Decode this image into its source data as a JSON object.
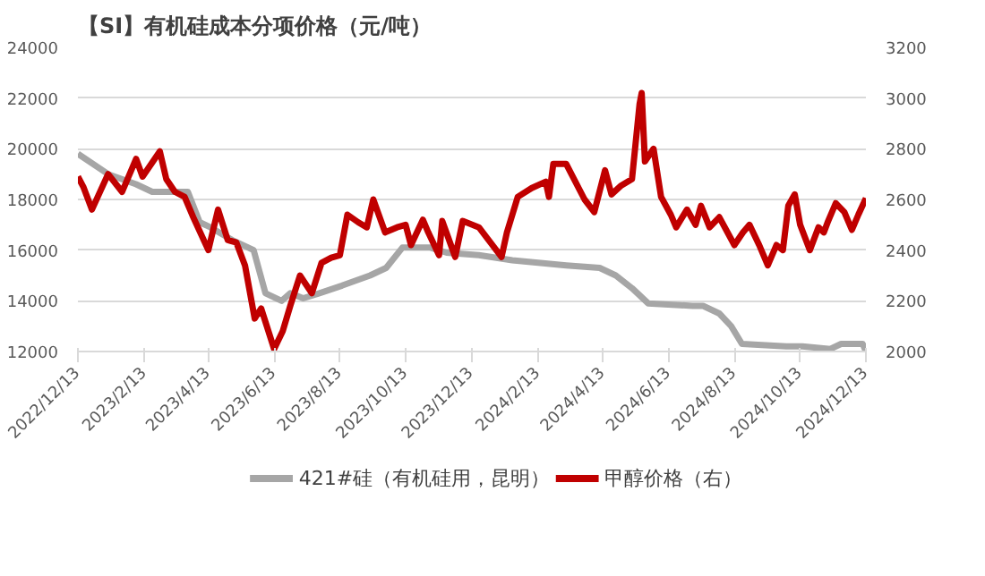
{
  "chart_data": {
    "type": "line",
    "title": "【SI】有机硅成本分项价格（元/吨）",
    "ylim": [
      12000,
      24000
    ],
    "yticks": [
      12000,
      14000,
      16000,
      18000,
      20000,
      22000,
      24000
    ],
    "y2lim": [
      2000,
      3200
    ],
    "y2ticks": [
      2000,
      2200,
      2400,
      2600,
      2800,
      3000,
      3200
    ],
    "xlim": [
      "2022-12-13",
      "2024-12-13"
    ],
    "xticks": [
      {
        "value": "2022-12-13",
        "label": "2022/12/13"
      },
      {
        "value": "2023-02-13",
        "label": "2023/2/13"
      },
      {
        "value": "2023-04-13",
        "label": "2023/4/13"
      },
      {
        "value": "2023-06-13",
        "label": "2023/6/13"
      },
      {
        "value": "2023-08-13",
        "label": "2023/8/13"
      },
      {
        "value": "2023-10-13",
        "label": "2023/10/13"
      },
      {
        "value": "2023-12-13",
        "label": "2023/12/13"
      },
      {
        "value": "2024-02-13",
        "label": "2024/2/13"
      },
      {
        "value": "2024-04-13",
        "label": "2024/4/13"
      },
      {
        "value": "2024-06-13",
        "label": "2024/6/13"
      },
      {
        "value": "2024-08-13",
        "label": "2024/8/13"
      },
      {
        "value": "2024-10-13",
        "label": "2024/10/13"
      },
      {
        "value": "2024-12-13",
        "label": "2024/12/13"
      }
    ],
    "grid": "y",
    "legend": "bottom",
    "line_style": "solid",
    "marker": "none",
    "series": [
      {
        "name": "421#硅（有机硅用，昆明）",
        "color": "#a6a6a6",
        "x": [
          "2022-12-13",
          "2023-01-10",
          "2023-02-05",
          "2023-02-20",
          "2023-03-25",
          "2023-04-05",
          "2023-04-15",
          "2023-05-05",
          "2023-05-25",
          "2023-06-05",
          "2023-06-20",
          "2023-06-28",
          "2023-07-10",
          "2023-07-25",
          "2023-08-15",
          "2023-09-10",
          "2023-09-25",
          "2023-10-10",
          "2023-11-05",
          "2023-11-20",
          "2023-12-20",
          "2024-01-20",
          "2024-03-10",
          "2024-04-10",
          "2024-04-25",
          "2024-05-10",
          "2024-05-25",
          "2024-07-05",
          "2024-07-15",
          "2024-07-30",
          "2024-08-10",
          "2024-08-20",
          "2024-09-30",
          "2024-10-15",
          "2024-11-10",
          "2024-11-20",
          "2024-12-10",
          "2024-12-13"
        ],
        "values": [
          19800,
          19000,
          18600,
          18300,
          18300,
          17100,
          16900,
          16400,
          16000,
          14300,
          14000,
          14300,
          14100,
          14300,
          14600,
          15000,
          15300,
          16100,
          16100,
          15900,
          15800,
          15600,
          15400,
          15300,
          15000,
          14500,
          13900,
          13800,
          13800,
          13500,
          13000,
          12300,
          12200,
          12200,
          12100,
          12300,
          12300,
          12000
        ]
      },
      {
        "name": "甲醇价格（右）",
        "color": "#c00000",
        "axis": "y2",
        "x": [
          "2022-12-13",
          "2022-12-18",
          "2022-12-26",
          "2023-01-10",
          "2023-01-23",
          "2023-02-05",
          "2023-02-11",
          "2023-02-27",
          "2023-03-05",
          "2023-03-13",
          "2023-03-22",
          "2023-03-30",
          "2023-04-13",
          "2023-04-22",
          "2023-05-01",
          "2023-05-09",
          "2023-05-17",
          "2023-05-26",
          "2023-06-01",
          "2023-06-13",
          "2023-06-21",
          "2023-06-28",
          "2023-07-07",
          "2023-07-18",
          "2023-07-27",
          "2023-08-05",
          "2023-08-13",
          "2023-08-20",
          "2023-08-30",
          "2023-09-07",
          "2023-09-13",
          "2023-09-24",
          "2023-10-05",
          "2023-10-13",
          "2023-10-18",
          "2023-10-29",
          "2023-11-03",
          "2023-11-13",
          "2023-11-16",
          "2023-11-28",
          "2023-12-05",
          "2023-12-20",
          "2024-01-10",
          "2024-01-15",
          "2024-01-25",
          "2024-02-07",
          "2024-02-20",
          "2024-02-23",
          "2024-02-27",
          "2024-03-10",
          "2024-03-27",
          "2024-04-05",
          "2024-04-15",
          "2024-04-21",
          "2024-04-30",
          "2024-05-10",
          "2024-05-17",
          "2024-05-19",
          "2024-05-22",
          "2024-05-30",
          "2024-06-06",
          "2024-06-15",
          "2024-06-20",
          "2024-06-30",
          "2024-07-08",
          "2024-07-13",
          "2024-07-21",
          "2024-07-30",
          "2024-08-13",
          "2024-08-21",
          "2024-08-27",
          "2024-09-05",
          "2024-09-13",
          "2024-09-21",
          "2024-09-27",
          "2024-10-02",
          "2024-10-08",
          "2024-10-13",
          "2024-10-22",
          "2024-10-30",
          "2024-11-04",
          "2024-11-08",
          "2024-11-15",
          "2024-11-23",
          "2024-11-30",
          "2024-12-06",
          "2024-12-13"
        ],
        "values": [
          2690,
          2650,
          2560,
          2700,
          2630,
          2760,
          2690,
          2790,
          2680,
          2630,
          2610,
          2530,
          2400,
          2560,
          2440,
          2430,
          2340,
          2130,
          2170,
          2010,
          2080,
          2180,
          2300,
          2230,
          2350,
          2370,
          2380,
          2540,
          2510,
          2490,
          2600,
          2470,
          2490,
          2500,
          2420,
          2520,
          2470,
          2380,
          2515,
          2373,
          2515,
          2490,
          2373,
          2470,
          2610,
          2645,
          2670,
          2610,
          2740,
          2740,
          2600,
          2550,
          2715,
          2620,
          2655,
          2680,
          2975,
          3020,
          2750,
          2800,
          2610,
          2540,
          2490,
          2560,
          2500,
          2575,
          2490,
          2530,
          2420,
          2470,
          2500,
          2420,
          2340,
          2420,
          2400,
          2575,
          2620,
          2500,
          2400,
          2490,
          2470,
          2515,
          2585,
          2550,
          2480,
          2540,
          2605
        ]
      }
    ]
  }
}
